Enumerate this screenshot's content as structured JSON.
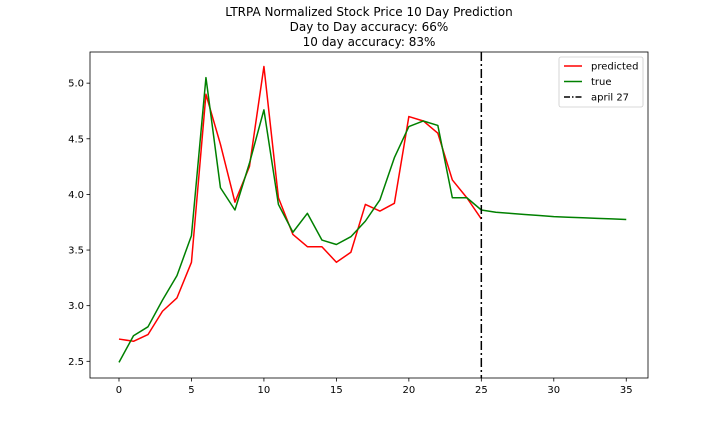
{
  "chart_data": {
    "type": "line",
    "title_lines": [
      "LTRPA Normalized Stock Price 10 Day Prediction",
      "Day to Day accuracy: 66%",
      "10 day accuracy: 83%"
    ],
    "xlim": [
      -2,
      36.5
    ],
    "ylim": [
      2.35,
      5.28
    ],
    "x_ticks": [
      0,
      5,
      10,
      15,
      20,
      25,
      30,
      35
    ],
    "y_ticks": [
      2.5,
      3.0,
      3.5,
      4.0,
      4.5,
      5.0
    ],
    "x_tick_labels": [
      "0",
      "5",
      "10",
      "15",
      "20",
      "25",
      "30",
      "35"
    ],
    "y_tick_labels": [
      "2.5",
      "3.0",
      "3.5",
      "4.0",
      "4.5",
      "5.0"
    ],
    "grid": false,
    "legend_position": "top-right",
    "series": [
      {
        "name": "predicted",
        "color": "#ff0000",
        "x": [
          0,
          1,
          2,
          3,
          4,
          5,
          6,
          7,
          8,
          9,
          10,
          11,
          12,
          13,
          14,
          15,
          16,
          17,
          18,
          19,
          20,
          21,
          22,
          23,
          24,
          25
        ],
        "y": [
          2.7,
          2.68,
          2.74,
          2.95,
          3.07,
          3.39,
          4.9,
          4.45,
          3.93,
          4.25,
          5.15,
          3.97,
          3.64,
          3.53,
          3.53,
          3.39,
          3.48,
          3.91,
          3.85,
          3.92,
          4.7,
          4.66,
          4.55,
          4.13,
          3.97,
          3.78
        ]
      },
      {
        "name": "true",
        "color": "#008000",
        "x": [
          0,
          1,
          2,
          3,
          4,
          5,
          6,
          7,
          8,
          9,
          10,
          11,
          12,
          13,
          14,
          15,
          16,
          17,
          18,
          19,
          20,
          21,
          22,
          23,
          24,
          25,
          26,
          27,
          28,
          29,
          30,
          31,
          32,
          33,
          34,
          35
        ],
        "y": [
          2.49,
          2.73,
          2.81,
          3.05,
          3.27,
          3.63,
          5.05,
          4.06,
          3.86,
          4.28,
          4.76,
          3.91,
          3.66,
          3.83,
          3.59,
          3.55,
          3.62,
          3.76,
          3.95,
          4.33,
          4.61,
          4.66,
          4.62,
          3.97,
          3.97,
          3.86,
          3.84,
          3.83,
          3.82,
          3.81,
          3.8,
          3.795,
          3.79,
          3.785,
          3.78,
          3.775
        ]
      }
    ],
    "vline": {
      "name": "april 27",
      "x": 25,
      "color": "#000000",
      "style": "dash-dot"
    }
  }
}
